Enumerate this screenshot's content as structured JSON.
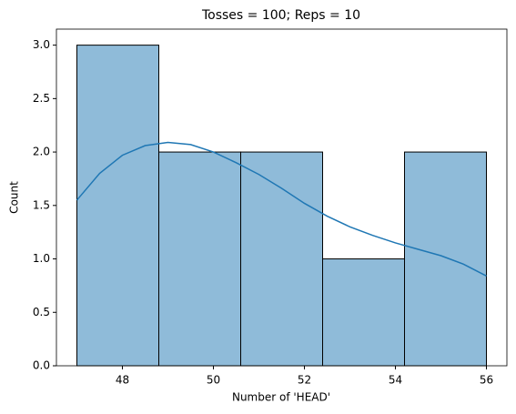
{
  "chart_data": {
    "type": "histogram",
    "title": "Tosses = 100; Reps = 10",
    "xlabel": "Number of 'HEAD'",
    "ylabel": "Count",
    "bins": [
      47,
      48.8,
      50.6,
      52.4,
      54.2,
      56
    ],
    "counts": [
      3,
      2,
      2,
      1,
      2
    ],
    "color": "#8fbbd9",
    "edgecolor": "#000000",
    "kde": {
      "color": "#1f77b4",
      "x": [
        47,
        47.5,
        48,
        48.5,
        49,
        49.5,
        50,
        50.5,
        51,
        51.5,
        52,
        52.5,
        53,
        53.5,
        54,
        54.5,
        55,
        55.5,
        56
      ],
      "values": [
        1.55,
        1.8,
        1.97,
        2.06,
        2.09,
        2.07,
        2.0,
        1.9,
        1.79,
        1.66,
        1.52,
        1.4,
        1.3,
        1.22,
        1.15,
        1.09,
        1.03,
        0.95,
        0.84
      ]
    },
    "xlim": [
      46.55,
      56.45
    ],
    "xticks": [
      48,
      50,
      52,
      54,
      56
    ],
    "ylim": [
      0,
      3.15
    ],
    "yticks": [
      {
        "value": 0,
        "label": "0.0"
      },
      {
        "value": 0.5,
        "label": "0.5"
      },
      {
        "value": 1,
        "label": "1.0"
      },
      {
        "value": 1.5,
        "label": "1.5"
      },
      {
        "value": 2,
        "label": "2.0"
      },
      {
        "value": 2.5,
        "label": "2.5"
      },
      {
        "value": 3,
        "label": "3.0"
      }
    ]
  }
}
